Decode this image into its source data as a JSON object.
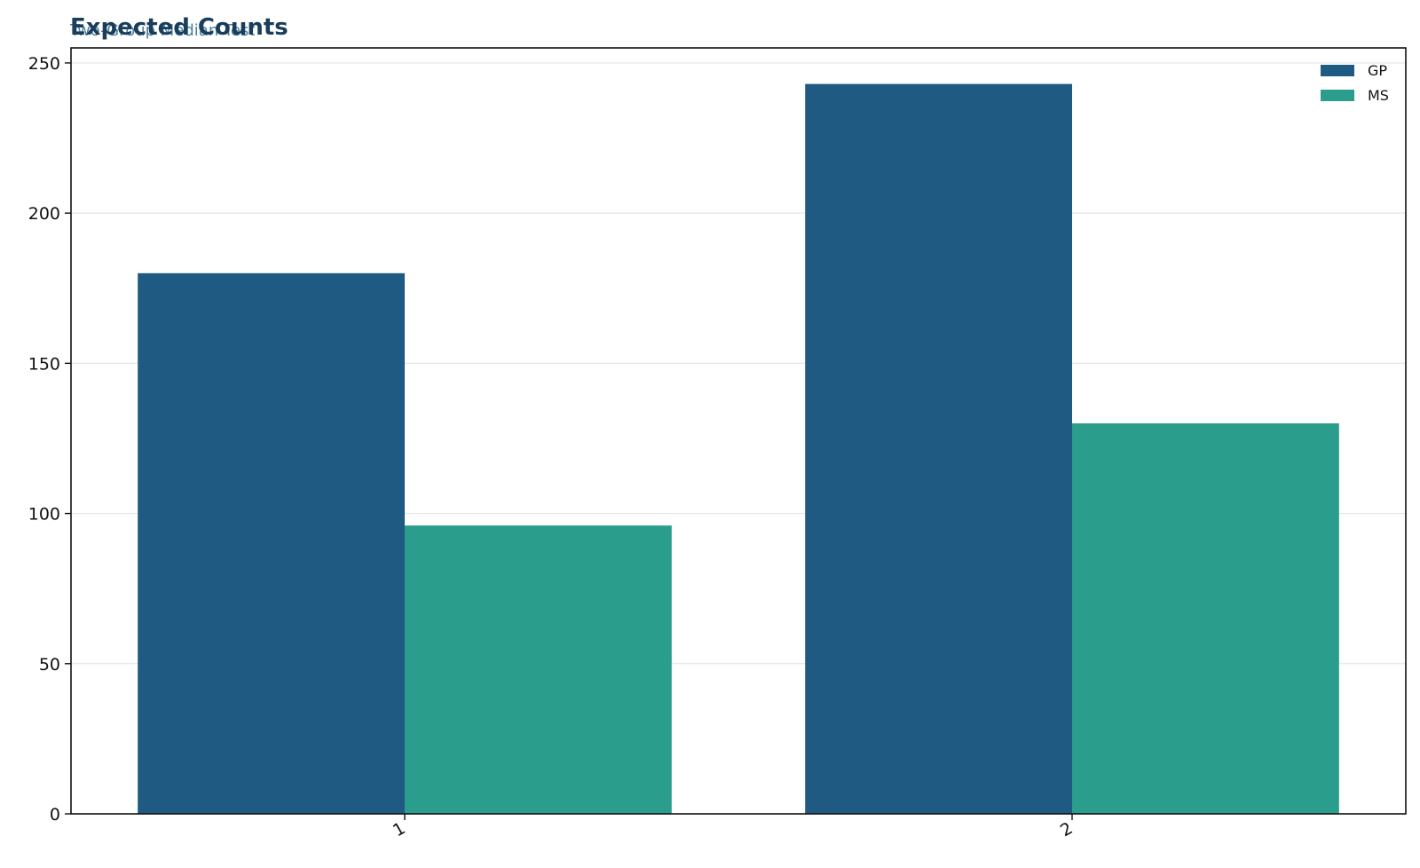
{
  "chart_data": {
    "type": "bar",
    "title": "Expected Counts",
    "subtitle": "Two-Group Median Test",
    "xlabel": "",
    "ylabel": "",
    "categories": [
      "1",
      "2"
    ],
    "series": [
      {
        "name": "GP",
        "values": [
          180,
          243
        ],
        "color": "#1f5a82"
      },
      {
        "name": "MS",
        "values": [
          96,
          130
        ],
        "color": "#2a9d8c"
      }
    ],
    "ylim": [
      0,
      255
    ],
    "yticks": [
      0,
      50,
      100,
      150,
      200,
      250
    ],
    "grid": true,
    "legend_position": "top-right",
    "title_color": "#1b3d5c",
    "subtitle_color": "#2a6e8a"
  }
}
